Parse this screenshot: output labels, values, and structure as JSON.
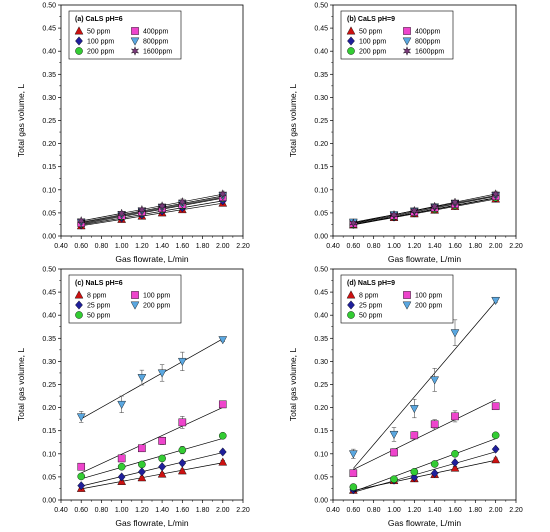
{
  "colors": {
    "axis": "#000000",
    "fit_line": "#000000",
    "error_bar": "#555555",
    "red": "#cc1111",
    "blue": "#1f1f9a",
    "green": "#33cc33",
    "magenta": "#ee44cc",
    "lightblue": "#5aa7e0",
    "purple": "#7a3a7a"
  },
  "chart_data": [
    {
      "type": "scatter",
      "title": "(a) CaLS pH=6",
      "xlabel": "Gas flowrate, L/min",
      "ylabel": "Total gas volume, L",
      "xlim": [
        0.4,
        2.2
      ],
      "ylim": [
        0.0,
        0.5
      ],
      "x_ticks": [
        "0.40",
        "0.60",
        "0.80",
        "1.00",
        "1.20",
        "1.40",
        "1.60",
        "1.80",
        "2.00",
        "2.20"
      ],
      "y_ticks": [
        "0.00",
        "0.05",
        "0.10",
        "0.15",
        "0.20",
        "0.25",
        "0.30",
        "0.35",
        "0.40",
        "0.45",
        "0.50"
      ],
      "legend_position": "top-left",
      "x": [
        0.6,
        1.0,
        1.2,
        1.4,
        1.6,
        2.0
      ],
      "series": [
        {
          "name": "50 ppm",
          "marker": "triangle-up",
          "color": "red",
          "values": [
            0.022,
            0.036,
            0.043,
            0.05,
            0.057,
            0.071
          ],
          "err": [
            0.003,
            0.003,
            0.003,
            0.003,
            0.004,
            0.004
          ]
        },
        {
          "name": "100 ppm",
          "marker": "diamond",
          "color": "blue",
          "values": [
            0.024,
            0.039,
            0.046,
            0.054,
            0.061,
            0.076
          ],
          "err": [
            0.003,
            0.003,
            0.003,
            0.003,
            0.004,
            0.004
          ]
        },
        {
          "name": "200 ppm",
          "marker": "circle",
          "color": "green",
          "values": [
            0.026,
            0.042,
            0.05,
            0.058,
            0.066,
            0.082
          ],
          "err": [
            0.003,
            0.003,
            0.003,
            0.004,
            0.004,
            0.004
          ]
        },
        {
          "name": "400ppm",
          "marker": "square",
          "color": "magenta",
          "values": [
            0.028,
            0.044,
            0.052,
            0.06,
            0.068,
            0.084
          ],
          "err": [
            0.003,
            0.003,
            0.003,
            0.004,
            0.004,
            0.005
          ]
        },
        {
          "name": "800ppm",
          "marker": "triangle-down",
          "color": "lightblue",
          "values": [
            0.03,
            0.046,
            0.054,
            0.062,
            0.07,
            0.087
          ],
          "err": [
            0.003,
            0.003,
            0.004,
            0.004,
            0.004,
            0.005
          ]
        },
        {
          "name": "1600ppm",
          "marker": "star",
          "color": "purple",
          "values": [
            0.033,
            0.049,
            0.057,
            0.065,
            0.074,
            0.091
          ],
          "err": [
            0.004,
            0.004,
            0.004,
            0.005,
            0.006,
            0.006
          ]
        }
      ]
    },
    {
      "type": "scatter",
      "title": "(b) CaLS pH=9",
      "xlabel": "Gas flowrate, L/min",
      "ylabel": "Total gas volume, L",
      "xlim": [
        0.4,
        2.2
      ],
      "ylim": [
        0.0,
        0.5
      ],
      "x_ticks": [
        "0.40",
        "0.60",
        "0.80",
        "1.00",
        "1.20",
        "1.40",
        "1.60",
        "1.80",
        "2.00",
        "2.20"
      ],
      "y_ticks": [
        "0.00",
        "0.05",
        "0.10",
        "0.15",
        "0.20",
        "0.25",
        "0.30",
        "0.35",
        "0.40",
        "0.45",
        "0.50"
      ],
      "legend_position": "top-left",
      "x": [
        0.6,
        1.0,
        1.2,
        1.4,
        1.6,
        2.0
      ],
      "series": [
        {
          "name": "50 ppm",
          "marker": "triangle-up",
          "color": "red",
          "values": [
            0.024,
            0.04,
            0.048,
            0.056,
            0.064,
            0.08
          ],
          "err": [
            0.003,
            0.003,
            0.003,
            0.003,
            0.004,
            0.004
          ]
        },
        {
          "name": "100 ppm",
          "marker": "diamond",
          "color": "blue",
          "values": [
            0.025,
            0.041,
            0.05,
            0.058,
            0.066,
            0.082
          ],
          "err": [
            0.003,
            0.003,
            0.003,
            0.003,
            0.004,
            0.004
          ]
        },
        {
          "name": "200 ppm",
          "marker": "circle",
          "color": "green",
          "values": [
            0.025,
            0.042,
            0.05,
            0.058,
            0.066,
            0.083
          ],
          "err": [
            0.003,
            0.003,
            0.003,
            0.003,
            0.004,
            0.004
          ]
        },
        {
          "name": "400ppm",
          "marker": "square",
          "color": "magenta",
          "values": [
            0.027,
            0.044,
            0.052,
            0.061,
            0.069,
            0.086
          ],
          "err": [
            0.003,
            0.003,
            0.003,
            0.004,
            0.004,
            0.004
          ]
        },
        {
          "name": "800ppm",
          "marker": "triangle-down",
          "color": "lightblue",
          "values": [
            0.03,
            0.046,
            0.054,
            0.063,
            0.071,
            0.088
          ],
          "err": [
            0.003,
            0.003,
            0.003,
            0.004,
            0.004,
            0.005
          ]
        },
        {
          "name": "1600ppm",
          "marker": "star",
          "color": "purple",
          "values": [
            0.028,
            0.046,
            0.055,
            0.064,
            0.073,
            0.091
          ],
          "err": [
            0.003,
            0.003,
            0.004,
            0.004,
            0.004,
            0.006
          ]
        }
      ]
    },
    {
      "type": "scatter",
      "title": "(c) NaLS pH=6",
      "xlabel": "Gas flowrate, L/min",
      "ylabel": "Total gas volume, L",
      "xlim": [
        0.4,
        2.2
      ],
      "ylim": [
        0.0,
        0.5
      ],
      "x_ticks": [
        "0.40",
        "0.60",
        "0.80",
        "1.00",
        "1.20",
        "1.40",
        "1.60",
        "1.80",
        "2.00",
        "2.20"
      ],
      "y_ticks": [
        "0.00",
        "0.05",
        "0.10",
        "0.15",
        "0.20",
        "0.25",
        "0.30",
        "0.35",
        "0.40",
        "0.45",
        "0.50"
      ],
      "legend_position": "top-left",
      "x": [
        0.6,
        1.0,
        1.2,
        1.4,
        1.6,
        2.0
      ],
      "series": [
        {
          "name": "8 ppm",
          "marker": "triangle-up",
          "color": "red",
          "values": [
            0.025,
            0.04,
            0.048,
            0.056,
            0.063,
            0.082
          ],
          "err": [
            0.003,
            0.003,
            0.003,
            0.004,
            0.004,
            0.004
          ]
        },
        {
          "name": "100 ppm",
          "marker": "square",
          "color": "magenta",
          "values": [
            0.072,
            0.09,
            0.112,
            0.128,
            0.168,
            0.207
          ],
          "err": [
            0.004,
            0.006,
            0.007,
            0.008,
            0.013,
            0.005
          ]
        },
        {
          "name": "25 ppm",
          "marker": "diamond",
          "color": "blue",
          "values": [
            0.031,
            0.05,
            0.061,
            0.072,
            0.08,
            0.104
          ],
          "err": [
            0.003,
            0.003,
            0.004,
            0.004,
            0.004,
            0.004
          ]
        },
        {
          "name": "200 ppm",
          "marker": "triangle-down",
          "color": "lightblue",
          "values": [
            0.18,
            0.207,
            0.265,
            0.275,
            0.3,
            0.347
          ],
          "err": [
            0.012,
            0.018,
            0.016,
            0.018,
            0.02,
            0.004
          ]
        },
        {
          "name": "50 ppm",
          "marker": "circle",
          "color": "green",
          "values": [
            0.051,
            0.072,
            0.077,
            0.09,
            0.108,
            0.139
          ],
          "err": [
            0.003,
            0.004,
            0.005,
            0.006,
            0.008,
            0.004
          ]
        }
      ]
    },
    {
      "type": "scatter",
      "title": "(d) NaLS pH=9",
      "xlabel": "Gas flowrate, L/min",
      "ylabel": "Total gas volume, L",
      "xlim": [
        0.4,
        2.2
      ],
      "ylim": [
        0.0,
        0.5
      ],
      "x_ticks": [
        "0.40",
        "0.60",
        "0.80",
        "1.00",
        "1.20",
        "1.40",
        "1.60",
        "1.80",
        "2.00",
        "2.20"
      ],
      "y_ticks": [
        "0.00",
        "0.05",
        "0.10",
        "0.15",
        "0.20",
        "0.25",
        "0.30",
        "0.35",
        "0.40",
        "0.45",
        "0.50"
      ],
      "legend_position": "top-left",
      "x": [
        0.6,
        1.0,
        1.2,
        1.4,
        1.6,
        2.0
      ],
      "series": [
        {
          "name": "8 ppm",
          "marker": "triangle-up",
          "color": "red",
          "values": [
            0.021,
            0.042,
            0.046,
            0.055,
            0.069,
            0.087
          ],
          "err": [
            0.003,
            0.003,
            0.003,
            0.003,
            0.004,
            0.004
          ]
        },
        {
          "name": "100 ppm",
          "marker": "square",
          "color": "magenta",
          "values": [
            0.058,
            0.103,
            0.14,
            0.164,
            0.181,
            0.203
          ],
          "err": [
            0.004,
            0.008,
            0.008,
            0.01,
            0.012,
            0.004
          ]
        },
        {
          "name": "25 ppm",
          "marker": "diamond",
          "color": "blue",
          "values": [
            0.022,
            0.043,
            0.049,
            0.058,
            0.081,
            0.11
          ],
          "err": [
            0.003,
            0.003,
            0.003,
            0.003,
            0.004,
            0.004
          ]
        },
        {
          "name": "200 ppm",
          "marker": "triangle-down",
          "color": "lightblue",
          "values": [
            0.1,
            0.142,
            0.198,
            0.26,
            0.362,
            0.432
          ],
          "err": [
            0.01,
            0.015,
            0.02,
            0.025,
            0.028,
            0.004
          ]
        },
        {
          "name": "50 ppm",
          "marker": "circle",
          "color": "green",
          "values": [
            0.028,
            0.045,
            0.061,
            0.078,
            0.1,
            0.14
          ],
          "err": [
            0.003,
            0.003,
            0.004,
            0.005,
            0.006,
            0.004
          ]
        }
      ]
    }
  ]
}
